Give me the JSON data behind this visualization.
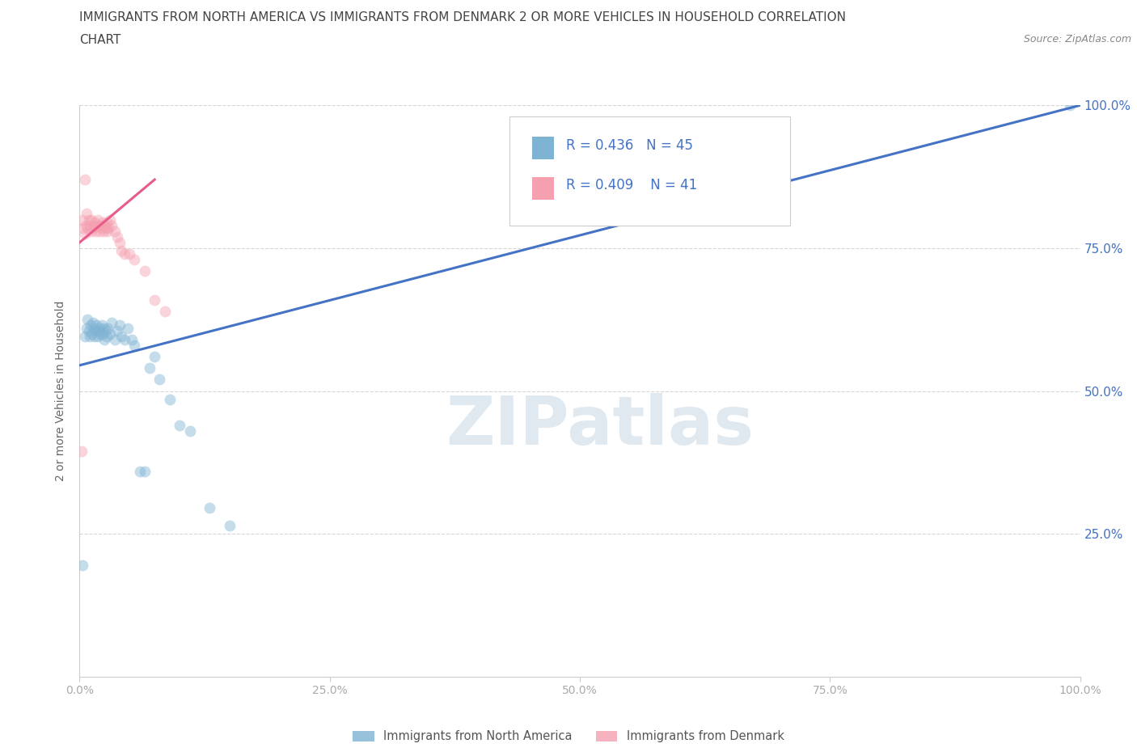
{
  "title_line1": "IMMIGRANTS FROM NORTH AMERICA VS IMMIGRANTS FROM DENMARK 2 OR MORE VEHICLES IN HOUSEHOLD CORRELATION",
  "title_line2": "CHART",
  "source_text": "Source: ZipAtlas.com",
  "ylabel": "2 or more Vehicles in Household",
  "xlim": [
    0.0,
    1.0
  ],
  "ylim": [
    0.0,
    1.0
  ],
  "xtick_labels": [
    "0.0%",
    "25.0%",
    "50.0%",
    "75.0%",
    "100.0%"
  ],
  "xtick_vals": [
    0.0,
    0.25,
    0.5,
    0.75,
    1.0
  ],
  "ytick_vals": [
    0.25,
    0.5,
    0.75,
    1.0
  ],
  "right_ytick_labels": [
    "25.0%",
    "50.0%",
    "75.0%",
    "100.0%"
  ],
  "right_ytick_vals": [
    0.25,
    0.5,
    0.75,
    1.0
  ],
  "blue_color": "#7FB3D3",
  "pink_color": "#F4A0B0",
  "blue_line_color": "#4472C4",
  "pink_line_color": "#E85C8A",
  "right_label_color": "#4472C4",
  "watermark_text": "ZIPatlas",
  "legend_R1": "R = 0.436",
  "legend_N1": "N = 45",
  "legend_R2": "R = 0.409",
  "legend_N2": " N = 41",
  "blue_scatter_x": [
    0.003,
    0.005,
    0.007,
    0.008,
    0.009,
    0.01,
    0.011,
    0.012,
    0.013,
    0.014,
    0.015,
    0.016,
    0.017,
    0.018,
    0.019,
    0.02,
    0.021,
    0.022,
    0.023,
    0.024,
    0.025,
    0.026,
    0.027,
    0.028,
    0.03,
    0.032,
    0.035,
    0.038,
    0.04,
    0.042,
    0.045,
    0.048,
    0.052,
    0.055,
    0.06,
    0.065,
    0.07,
    0.075,
    0.08,
    0.09,
    0.1,
    0.11,
    0.13,
    0.15,
    0.99
  ],
  "blue_scatter_y": [
    0.195,
    0.595,
    0.61,
    0.625,
    0.605,
    0.595,
    0.615,
    0.6,
    0.62,
    0.61,
    0.595,
    0.605,
    0.615,
    0.595,
    0.605,
    0.61,
    0.6,
    0.615,
    0.6,
    0.61,
    0.59,
    0.605,
    0.595,
    0.61,
    0.6,
    0.62,
    0.59,
    0.605,
    0.615,
    0.595,
    0.59,
    0.61,
    0.59,
    0.58,
    0.36,
    0.36,
    0.54,
    0.56,
    0.52,
    0.485,
    0.44,
    0.43,
    0.295,
    0.265,
    1.0
  ],
  "pink_scatter_x": [
    0.002,
    0.003,
    0.004,
    0.005,
    0.006,
    0.007,
    0.008,
    0.009,
    0.01,
    0.011,
    0.012,
    0.013,
    0.014,
    0.015,
    0.016,
    0.017,
    0.018,
    0.019,
    0.02,
    0.021,
    0.022,
    0.023,
    0.024,
    0.025,
    0.026,
    0.027,
    0.028,
    0.029,
    0.03,
    0.032,
    0.035,
    0.038,
    0.04,
    0.042,
    0.045,
    0.05,
    0.055,
    0.065,
    0.075,
    0.085,
    0.005
  ],
  "pink_scatter_y": [
    0.395,
    0.8,
    0.785,
    0.775,
    0.79,
    0.81,
    0.785,
    0.8,
    0.79,
    0.78,
    0.8,
    0.79,
    0.785,
    0.795,
    0.78,
    0.79,
    0.8,
    0.79,
    0.78,
    0.79,
    0.785,
    0.795,
    0.78,
    0.79,
    0.785,
    0.795,
    0.78,
    0.785,
    0.8,
    0.79,
    0.78,
    0.77,
    0.76,
    0.745,
    0.74,
    0.74,
    0.73,
    0.71,
    0.66,
    0.64,
    0.87
  ],
  "blue_line_x": [
    0.0,
    1.0
  ],
  "blue_line_y": [
    0.545,
    1.0
  ],
  "pink_line_x": [
    0.0,
    0.075
  ],
  "pink_line_y": [
    0.76,
    0.87
  ],
  "grid_color": "#CCCCCC",
  "background_color": "#FFFFFF",
  "title_color": "#444444",
  "title_fontsize": 11,
  "tick_label_color": "#AAAAAA",
  "legend_fontsize": 12,
  "watermark_color": "#E0E8F0",
  "watermark_fontsize": 60,
  "scatter_size": 100,
  "scatter_alpha": 0.45,
  "legend_R_color": "#4472C4",
  "bottom_legend_label1": "Immigrants from North America",
  "bottom_legend_label2": "Immigrants from Denmark"
}
